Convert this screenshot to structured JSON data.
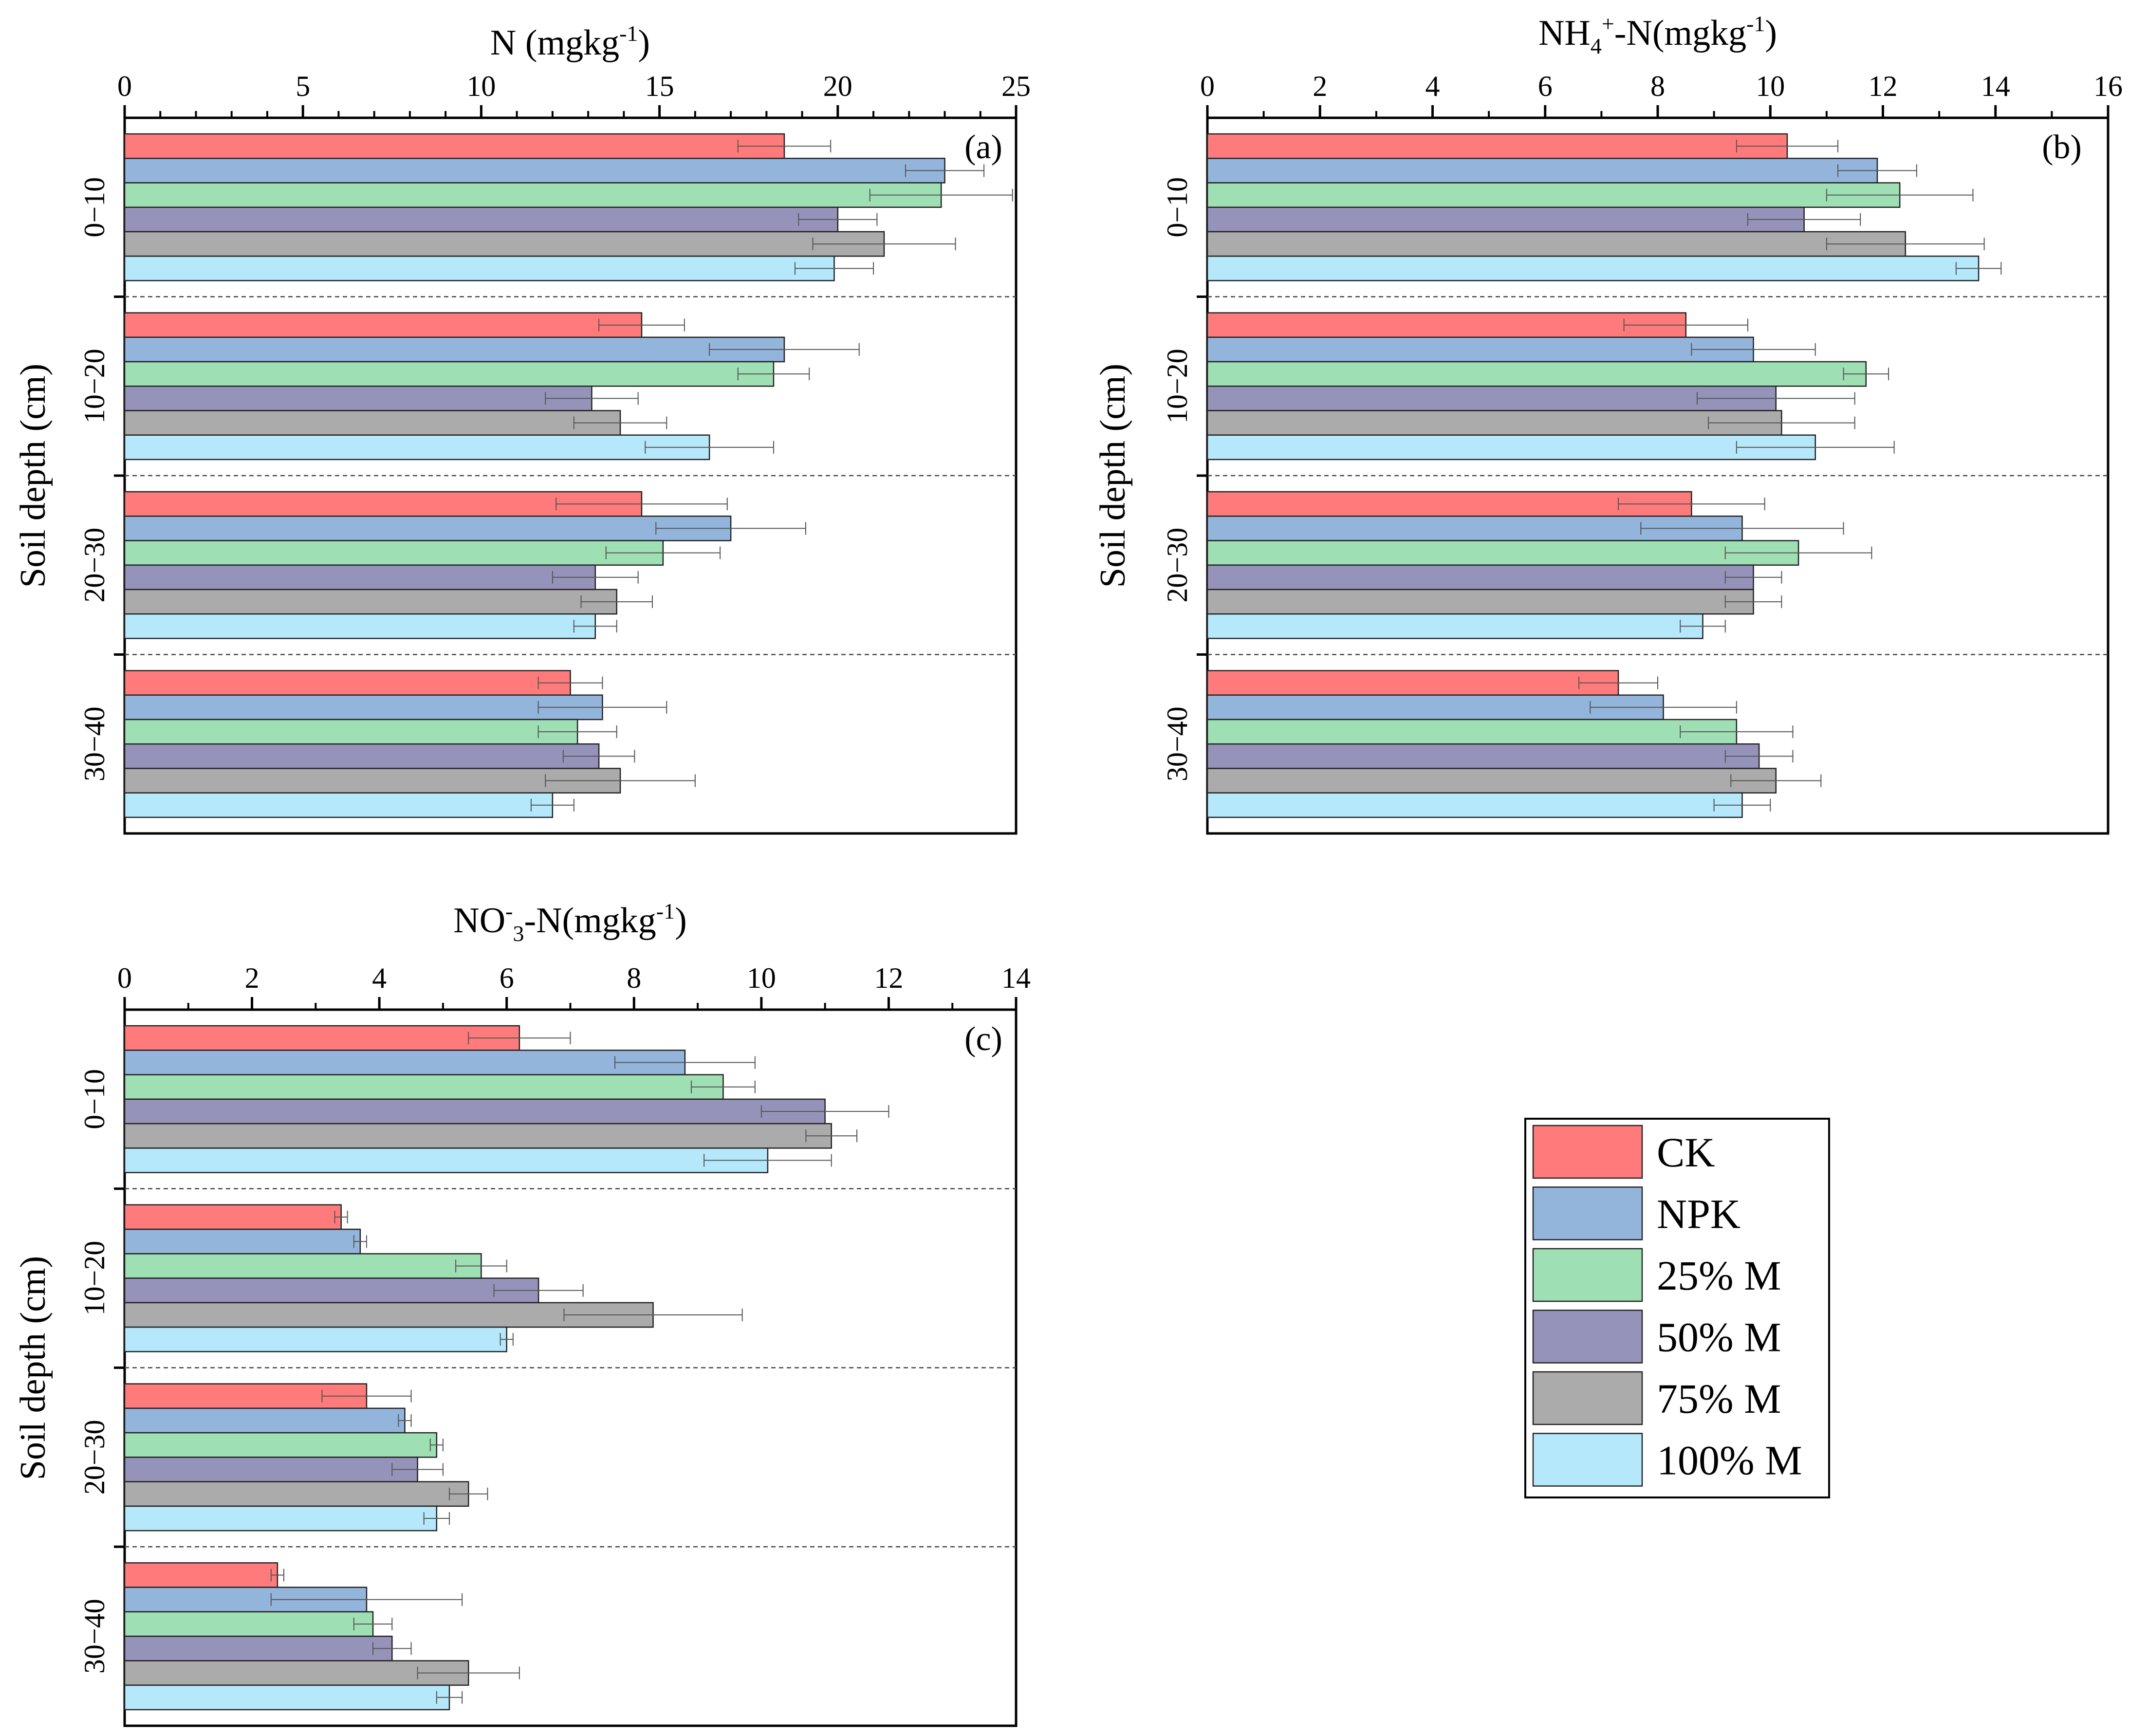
{
  "chart_data": [
    {
      "type": "bar",
      "orientation": "horizontal",
      "panel_label": "(a)",
      "title_parts": [
        "N (mgkg",
        "-1",
        ")"
      ],
      "title": "N (mgkg-1)",
      "ylabel": "Soil depth (cm)",
      "xlim": [
        0,
        25
      ],
      "xticks": [
        0,
        5,
        10,
        15,
        20,
        25
      ],
      "categories": [
        "0−10",
        "10−20",
        "20−30",
        "30−40"
      ],
      "series": [
        {
          "name": "CK",
          "values": [
            18.5,
            14.5,
            14.5,
            12.5
          ],
          "errors": [
            1.3,
            1.2,
            2.4,
            0.9
          ]
        },
        {
          "name": "NPK",
          "values": [
            23.0,
            18.5,
            17.0,
            13.4
          ],
          "errors": [
            1.1,
            2.1,
            2.1,
            1.8
          ]
        },
        {
          "name": "25% M",
          "values": [
            22.9,
            18.2,
            15.1,
            12.7
          ],
          "errors": [
            2.0,
            1.0,
            1.6,
            1.1
          ]
        },
        {
          "name": "50% M",
          "values": [
            20.0,
            13.1,
            13.2,
            13.3
          ],
          "errors": [
            1.1,
            1.3,
            1.2,
            1.0
          ]
        },
        {
          "name": "75% M",
          "values": [
            21.3,
            13.9,
            13.8,
            13.9
          ],
          "errors": [
            2.0,
            1.3,
            1.0,
            2.1
          ]
        },
        {
          "name": "100% M",
          "values": [
            19.9,
            16.4,
            13.2,
            12.0
          ],
          "errors": [
            1.1,
            1.8,
            0.6,
            0.6
          ]
        }
      ]
    },
    {
      "type": "bar",
      "orientation": "horizontal",
      "panel_label": "(b)",
      "title_parts": [
        "NH",
        "4",
        "+",
        "-N(mgkg",
        "-1",
        ")"
      ],
      "title": "NH4+-N(mgkg-1)",
      "ylabel": "Soil depth (cm)",
      "xlim": [
        0,
        16
      ],
      "xticks": [
        0,
        2,
        4,
        6,
        8,
        10,
        12,
        14,
        16
      ],
      "categories": [
        "0−10",
        "10−20",
        "20−30",
        "30−40"
      ],
      "series": [
        {
          "name": "CK",
          "values": [
            10.3,
            8.5,
            8.6,
            7.3
          ],
          "errors": [
            0.9,
            1.1,
            1.3,
            0.7
          ]
        },
        {
          "name": "NPK",
          "values": [
            11.9,
            9.7,
            9.5,
            8.1
          ],
          "errors": [
            0.7,
            1.1,
            1.8,
            1.3
          ]
        },
        {
          "name": "25% M",
          "values": [
            12.3,
            11.7,
            10.5,
            9.4
          ],
          "errors": [
            1.3,
            0.4,
            1.3,
            1.0
          ]
        },
        {
          "name": "50% M",
          "values": [
            10.6,
            10.1,
            9.7,
            9.8
          ],
          "errors": [
            1.0,
            1.4,
            0.5,
            0.6
          ]
        },
        {
          "name": "75% M",
          "values": [
            12.4,
            10.2,
            9.7,
            10.1
          ],
          "errors": [
            1.4,
            1.3,
            0.5,
            0.8
          ]
        },
        {
          "name": "100% M",
          "values": [
            13.7,
            10.8,
            8.8,
            9.5
          ],
          "errors": [
            0.4,
            1.4,
            0.4,
            0.5
          ]
        }
      ]
    },
    {
      "type": "bar",
      "orientation": "horizontal",
      "panel_label": "(c)",
      "title_parts": [
        "NO",
        "-",
        "3",
        "-N(mgkg",
        "-1",
        ")"
      ],
      "title": "NO-3-N(mgkg-1)",
      "ylabel": "Soil depth (cm)",
      "xlim": [
        0,
        14
      ],
      "xticks": [
        0,
        2,
        4,
        6,
        8,
        10,
        12,
        14
      ],
      "categories": [
        "0−10",
        "10−20",
        "20−30",
        "30−40"
      ],
      "series": [
        {
          "name": "CK",
          "values": [
            6.2,
            3.4,
            3.8,
            2.4
          ],
          "errors": [
            0.8,
            0.1,
            0.7,
            0.1
          ]
        },
        {
          "name": "NPK",
          "values": [
            8.8,
            3.7,
            4.4,
            3.8
          ],
          "errors": [
            1.1,
            0.1,
            0.1,
            1.5
          ]
        },
        {
          "name": "25% M",
          "values": [
            9.4,
            5.6,
            4.9,
            3.9
          ],
          "errors": [
            0.5,
            0.4,
            0.1,
            0.3
          ]
        },
        {
          "name": "50% M",
          "values": [
            11.0,
            6.5,
            4.6,
            4.2
          ],
          "errors": [
            1.0,
            0.7,
            0.4,
            0.3
          ]
        },
        {
          "name": "75% M",
          "values": [
            11.1,
            8.3,
            5.4,
            5.4
          ],
          "errors": [
            0.4,
            1.4,
            0.3,
            0.8
          ]
        },
        {
          "name": "100% M",
          "values": [
            10.1,
            6.0,
            4.9,
            5.1
          ],
          "errors": [
            1.0,
            0.1,
            0.2,
            0.2
          ]
        }
      ]
    }
  ],
  "legend": {
    "entries": [
      {
        "label": "CK",
        "color": "#ff7b7b"
      },
      {
        "label": "NPK",
        "color": "#93b5dc"
      },
      {
        "label": "25% M",
        "color": "#9ee0b4"
      },
      {
        "label": "50% M",
        "color": "#9693bb"
      },
      {
        "label": "75% M",
        "color": "#ababab"
      },
      {
        "label": "100% M",
        "color": "#b4e8fa"
      }
    ]
  }
}
